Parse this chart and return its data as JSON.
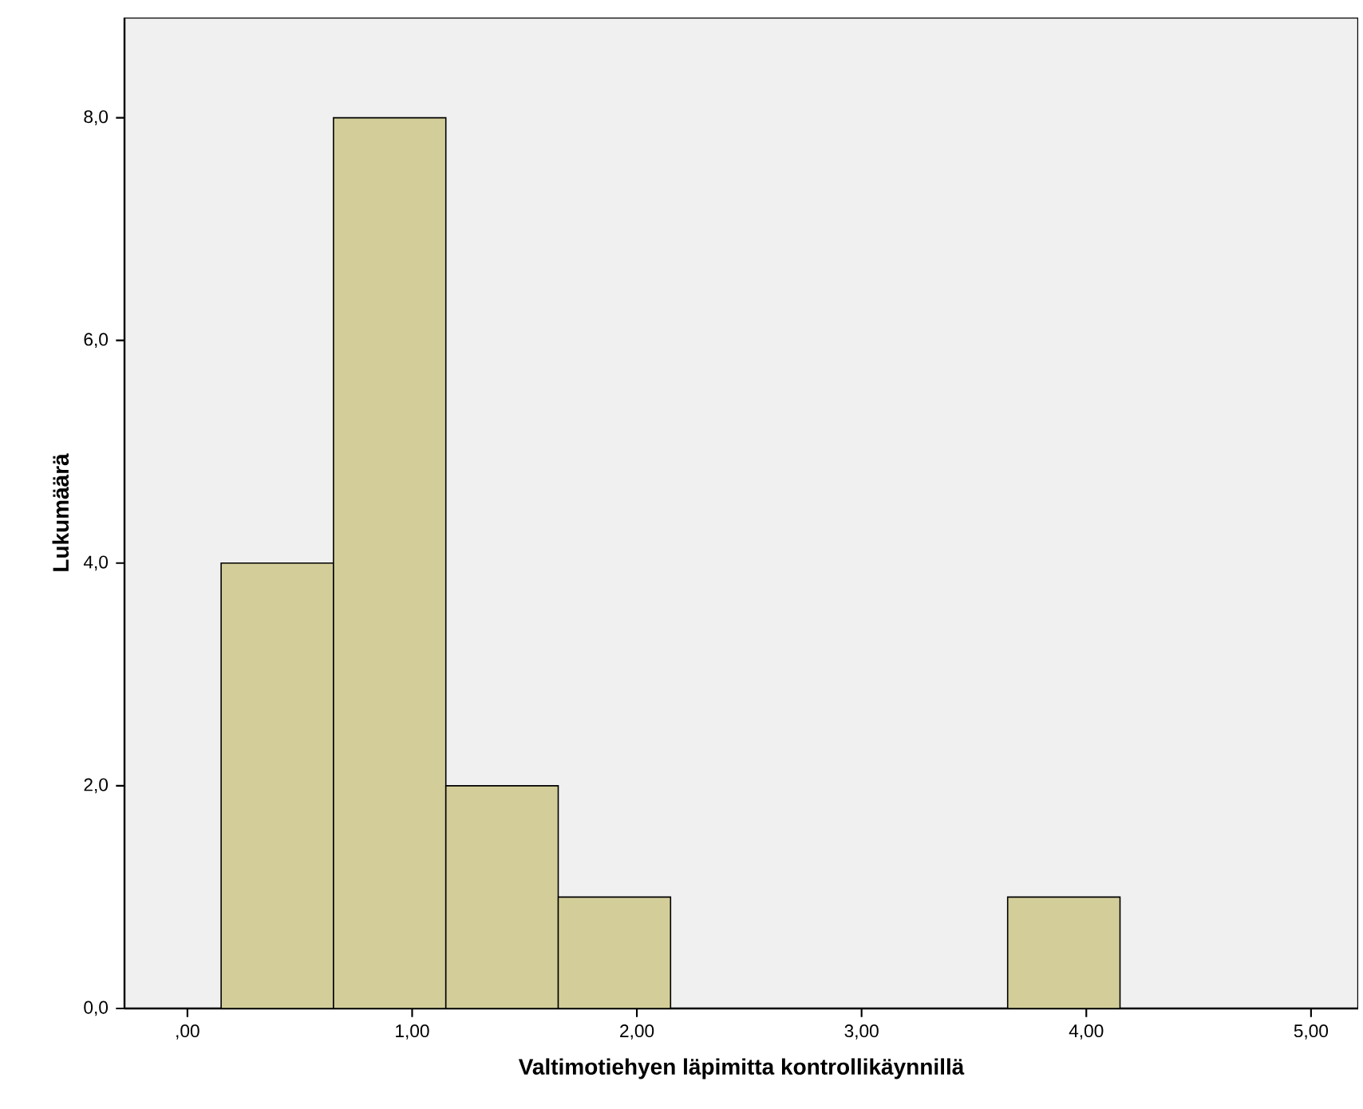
{
  "chart_data": {
    "type": "histogram",
    "xlabel": "Valtimotiehyen läpimitta kontrollikäynnillä",
    "ylabel": "Lukumäärä",
    "bins": [
      0.15,
      0.65,
      1.15,
      1.65,
      2.15,
      2.65,
      3.15,
      3.65,
      4.15
    ],
    "values": [
      4,
      8,
      2,
      1,
      0,
      0,
      0,
      1
    ],
    "color": "#d3ce99",
    "xlim": [
      -0.28,
      5.21
    ],
    "ylim": [
      0,
      8.9
    ],
    "xticks": [
      {
        "value": 0,
        "label": ",00"
      },
      {
        "value": 1,
        "label": "1,00"
      },
      {
        "value": 2,
        "label": "2,00"
      },
      {
        "value": 3,
        "label": "3,00"
      },
      {
        "value": 4,
        "label": "4,00"
      },
      {
        "value": 5,
        "label": "5,00"
      }
    ],
    "yticks": [
      {
        "value": 0,
        "label": "0,0"
      },
      {
        "value": 2,
        "label": "2,0"
      },
      {
        "value": 4,
        "label": "4,0"
      },
      {
        "value": 6,
        "label": "6,0"
      },
      {
        "value": 8,
        "label": "8,0"
      }
    ],
    "grid": false
  }
}
